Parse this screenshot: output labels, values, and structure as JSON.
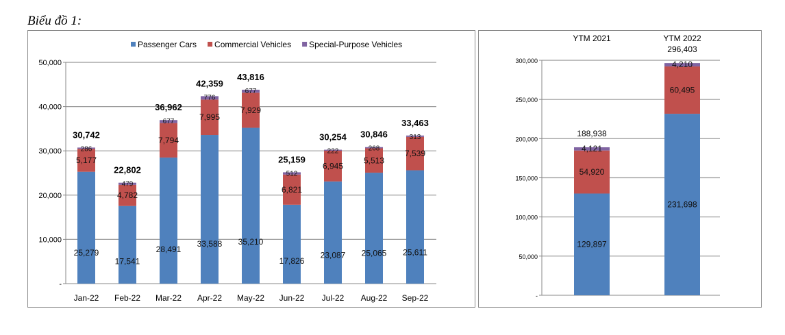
{
  "title": "Biểu đồ 1:",
  "chart_data": [
    {
      "type": "bar",
      "stacked": true,
      "categories": [
        "Jan-22",
        "Feb-22",
        "Mar-22",
        "Apr-22",
        "May-22",
        "Jun-22",
        "Jul-22",
        "Aug-22",
        "Sep-22"
      ],
      "series": [
        {
          "name": "Passenger Cars",
          "color": "#4F81BD",
          "values": [
            25279,
            17541,
            28491,
            33588,
            35210,
            17826,
            23087,
            25065,
            25611
          ]
        },
        {
          "name": "Commercial Vehicles",
          "color": "#C0504D",
          "values": [
            5177,
            4782,
            7794,
            7995,
            7929,
            6821,
            6945,
            5513,
            7539
          ]
        },
        {
          "name": "Special-Purpose Vehicles",
          "color": "#8064A2",
          "values": [
            286,
            479,
            677,
            776,
            677,
            512,
            222,
            268,
            313
          ]
        }
      ],
      "totals": [
        30742,
        22802,
        36962,
        42359,
        43816,
        25159,
        30254,
        30846,
        33463
      ],
      "ylim": [
        0,
        50000
      ],
      "yticks": [
        "-",
        "10,000",
        "20,000",
        "30,000",
        "40,000",
        "50,000"
      ],
      "legend": "top",
      "grid": true
    },
    {
      "type": "bar",
      "stacked": true,
      "categories": [
        "YTM 2021",
        "YTM 2022"
      ],
      "series": [
        {
          "name": "Passenger Cars",
          "color": "#4F81BD",
          "values": [
            129897,
            231698
          ]
        },
        {
          "name": "Commercial Vehicles",
          "color": "#C0504D",
          "values": [
            54920,
            60495
          ]
        },
        {
          "name": "Special-Purpose Vehicles",
          "color": "#8064A2",
          "values": [
            4121,
            4210
          ]
        }
      ],
      "totals": [
        188938,
        296403
      ],
      "ylim": [
        0,
        300000
      ],
      "yticks": [
        "-",
        "50,000",
        "100,000",
        "150,000",
        "200,000",
        "250,000",
        "300,000"
      ],
      "legend": "none",
      "grid": true
    }
  ]
}
